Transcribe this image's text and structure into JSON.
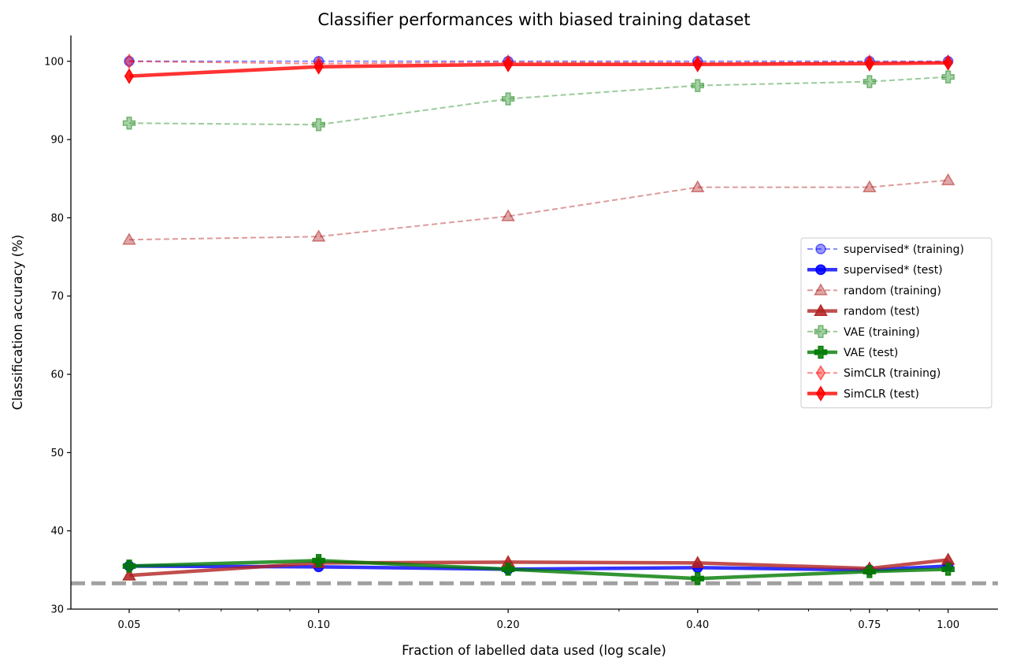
{
  "chart_data": {
    "type": "line",
    "title": "Classifier performances with biased training dataset",
    "xlabel": "Fraction of labelled data used (log scale)",
    "ylabel": "Classification accuracy (%)",
    "x_scale": "log",
    "x": [
      0.05,
      0.1,
      0.2,
      0.4,
      0.75,
      1.0
    ],
    "x_tick_labels": [
      "0.05",
      "0.10",
      "0.20",
      "0.40",
      "0.75",
      "1.00"
    ],
    "y_ticks": [
      30,
      40,
      50,
      60,
      70,
      80,
      90,
      100
    ],
    "ylim": [
      30,
      103.3
    ],
    "xlim": [
      0.0404,
      1.2
    ],
    "grid": false,
    "legend_position": "center-right",
    "chance_level": 33.3,
    "series": [
      {
        "name": "supervised* (training)",
        "values": [
          100.0,
          100.0,
          100.0,
          100.0,
          100.0,
          100.0
        ],
        "color": "#0000ff",
        "marker": "circle",
        "style": "dashed",
        "role": "training"
      },
      {
        "name": "supervised* (test)",
        "values": [
          35.5,
          35.4,
          35.1,
          35.3,
          35.0,
          35.5
        ],
        "color": "#0000ff",
        "marker": "circle",
        "style": "solid",
        "role": "test"
      },
      {
        "name": "random (training)",
        "values": [
          77.2,
          77.6,
          80.2,
          83.9,
          83.9,
          84.8
        ],
        "color": "#b22222",
        "marker": "triangle",
        "style": "dashed",
        "role": "training"
      },
      {
        "name": "random (test)",
        "values": [
          34.3,
          35.9,
          36.0,
          35.9,
          35.2,
          36.3
        ],
        "color": "#b22222",
        "marker": "triangle",
        "style": "solid",
        "role": "test"
      },
      {
        "name": "VAE (training)",
        "values": [
          92.1,
          91.9,
          95.2,
          96.9,
          97.4,
          98.0
        ],
        "color": "#228b22",
        "marker": "plus",
        "style": "dashed",
        "role": "training"
      },
      {
        "name": "VAE (test)",
        "values": [
          35.5,
          36.2,
          35.1,
          33.9,
          34.8,
          35.1
        ],
        "color": "#007a00",
        "marker": "plus",
        "style": "solid",
        "role": "test"
      },
      {
        "name": "SimCLR (training)",
        "values": [
          100.0,
          99.7,
          99.9,
          99.8,
          99.9,
          99.9
        ],
        "color": "#ff0000",
        "marker": "diamond",
        "style": "dashed",
        "role": "training"
      },
      {
        "name": "SimCLR (test)",
        "values": [
          98.1,
          99.3,
          99.6,
          99.6,
          99.7,
          99.8
        ],
        "color": "#ff0000",
        "marker": "diamond",
        "style": "solid",
        "role": "test"
      }
    ]
  }
}
